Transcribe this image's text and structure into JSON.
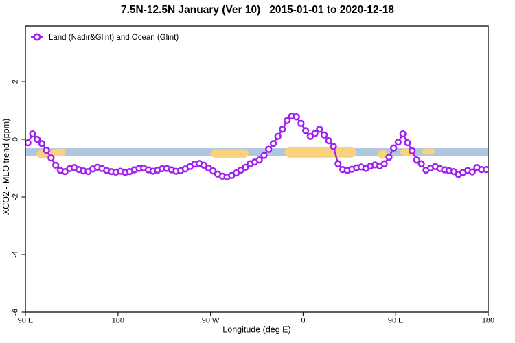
{
  "title": "7.5N-12.5N January (Ver 10)   2015-01-01 to 2020-12-18",
  "legend": {
    "label": "Land (Nadir&Glint) and Ocean (Glint)",
    "symbol": "open-circle-on-line"
  },
  "axes": {
    "x": {
      "label": "Longitude (deg E)"
    },
    "y": {
      "label": "XCO2 - MLO trend (ppm)"
    }
  },
  "colors": {
    "series": "#A020F0",
    "band": "#AEC6DF",
    "highlight": "#FAD17C",
    "axis": "#1a1a1a",
    "marker_fill": "#ffffff"
  },
  "chart_data": {
    "type": "line",
    "title": "7.5N-12.5N January (Ver 10)   2015-01-01 to 2020-12-18",
    "xlabel": "Longitude (deg E)",
    "ylabel": "XCO2 - MLO trend (ppm)",
    "xlim": [
      90,
      540
    ],
    "ylim": [
      -6,
      3.93
    ],
    "grid": false,
    "legend_position": "top-left",
    "x_ticks": [
      {
        "value": 90,
        "label": "90 E"
      },
      {
        "value": 180,
        "label": "180"
      },
      {
        "value": 270,
        "label": "90 W"
      },
      {
        "value": 360,
        "label": "0"
      },
      {
        "value": 450,
        "label": "90 E"
      },
      {
        "value": 540,
        "label": "180"
      }
    ],
    "y_ticks": [
      {
        "value": 2,
        "label": "2"
      },
      {
        "value": 0,
        "label": "0"
      },
      {
        "value": -2,
        "label": "-2"
      },
      {
        "value": -4,
        "label": "-4"
      },
      {
        "value": -6,
        "label": "-6"
      }
    ],
    "ocean_band": {
      "color": "#AEC6DF",
      "y_from": -0.31,
      "y_to": -0.58
    },
    "highlight_segments": [
      {
        "from": 103,
        "to": 113,
        "y": -0.52,
        "h": 0.3
      },
      {
        "from": 117.5,
        "to": 127,
        "y": -0.46,
        "h": 0.26
      },
      {
        "from": 272,
        "to": 305,
        "y": -0.49,
        "h": 0.3
      },
      {
        "from": 344,
        "to": 409.5,
        "y": -0.455,
        "h": 0.36
      },
      {
        "from": 434.5,
        "to": 439.5,
        "y": -0.52,
        "h": 0.32
      },
      {
        "from": 456.5,
        "to": 467.5,
        "y": -0.45,
        "h": 0.26
      },
      {
        "from": 477.5,
        "to": 486,
        "y": -0.42,
        "h": 0.2
      }
    ],
    "series": [
      {
        "name": "Land (Nadir&Glint) and Ocean (Glint)",
        "color": "#A020F0",
        "marker": "open-circle",
        "x": [
          92.5,
          97,
          101.5,
          106,
          110.5,
          115,
          119.5,
          124,
          128.5,
          133,
          137.5,
          142,
          146.5,
          151,
          155.5,
          160,
          164.5,
          169,
          173.5,
          178,
          182.5,
          187,
          191.5,
          196,
          200.5,
          205,
          209.5,
          214,
          218.5,
          223,
          227.5,
          232,
          236.5,
          241,
          245.5,
          250,
          254.5,
          259,
          263.5,
          268,
          272.5,
          277,
          281.5,
          286,
          290.5,
          295,
          299.5,
          304,
          308.5,
          313,
          317.5,
          322,
          326.5,
          331,
          335.5,
          340,
          344.5,
          349,
          353.5,
          358,
          362.5,
          367,
          371.5,
          376,
          380.5,
          385,
          389.5,
          394,
          398.5,
          403,
          407.5,
          412,
          416.5,
          421,
          425.5,
          430,
          434.5,
          439,
          443.5,
          448,
          452.5,
          457,
          461.5,
          466,
          470.5,
          475,
          479.5,
          484,
          488.5,
          493,
          497.5,
          502,
          506.5,
          511,
          515.5,
          520,
          524.5,
          529,
          533.5,
          538
        ],
        "y": [
          -0.12,
          0.19,
          0.0,
          -0.15,
          -0.38,
          -0.65,
          -0.9,
          -1.08,
          -1.12,
          -1.02,
          -0.98,
          -1.05,
          -1.1,
          -1.12,
          -1.03,
          -0.97,
          -1.02,
          -1.08,
          -1.12,
          -1.14,
          -1.11,
          -1.15,
          -1.12,
          -1.06,
          -1.01,
          -1.0,
          -1.06,
          -1.11,
          -1.07,
          -1.02,
          -1.01,
          -1.06,
          -1.11,
          -1.09,
          -1.03,
          -0.95,
          -0.86,
          -0.84,
          -0.9,
          -1.0,
          -1.1,
          -1.21,
          -1.28,
          -1.31,
          -1.26,
          -1.17,
          -1.07,
          -0.97,
          -0.85,
          -0.79,
          -0.72,
          -0.56,
          -0.35,
          -0.15,
          0.1,
          0.35,
          0.65,
          0.81,
          0.78,
          0.55,
          0.3,
          0.1,
          0.2,
          0.35,
          0.15,
          -0.05,
          -0.25,
          -0.85,
          -1.05,
          -1.08,
          -1.04,
          -0.99,
          -0.96,
          -1.01,
          -0.93,
          -0.89,
          -0.93,
          -0.85,
          -0.62,
          -0.3,
          -0.1,
          0.19,
          -0.12,
          -0.4,
          -0.72,
          -0.85,
          -1.07,
          -1.0,
          -0.95,
          -1.02,
          -1.06,
          -1.09,
          -1.12,
          -1.22,
          -1.15,
          -1.08,
          -1.13,
          -0.98,
          -1.05,
          -1.05
        ]
      }
    ]
  }
}
